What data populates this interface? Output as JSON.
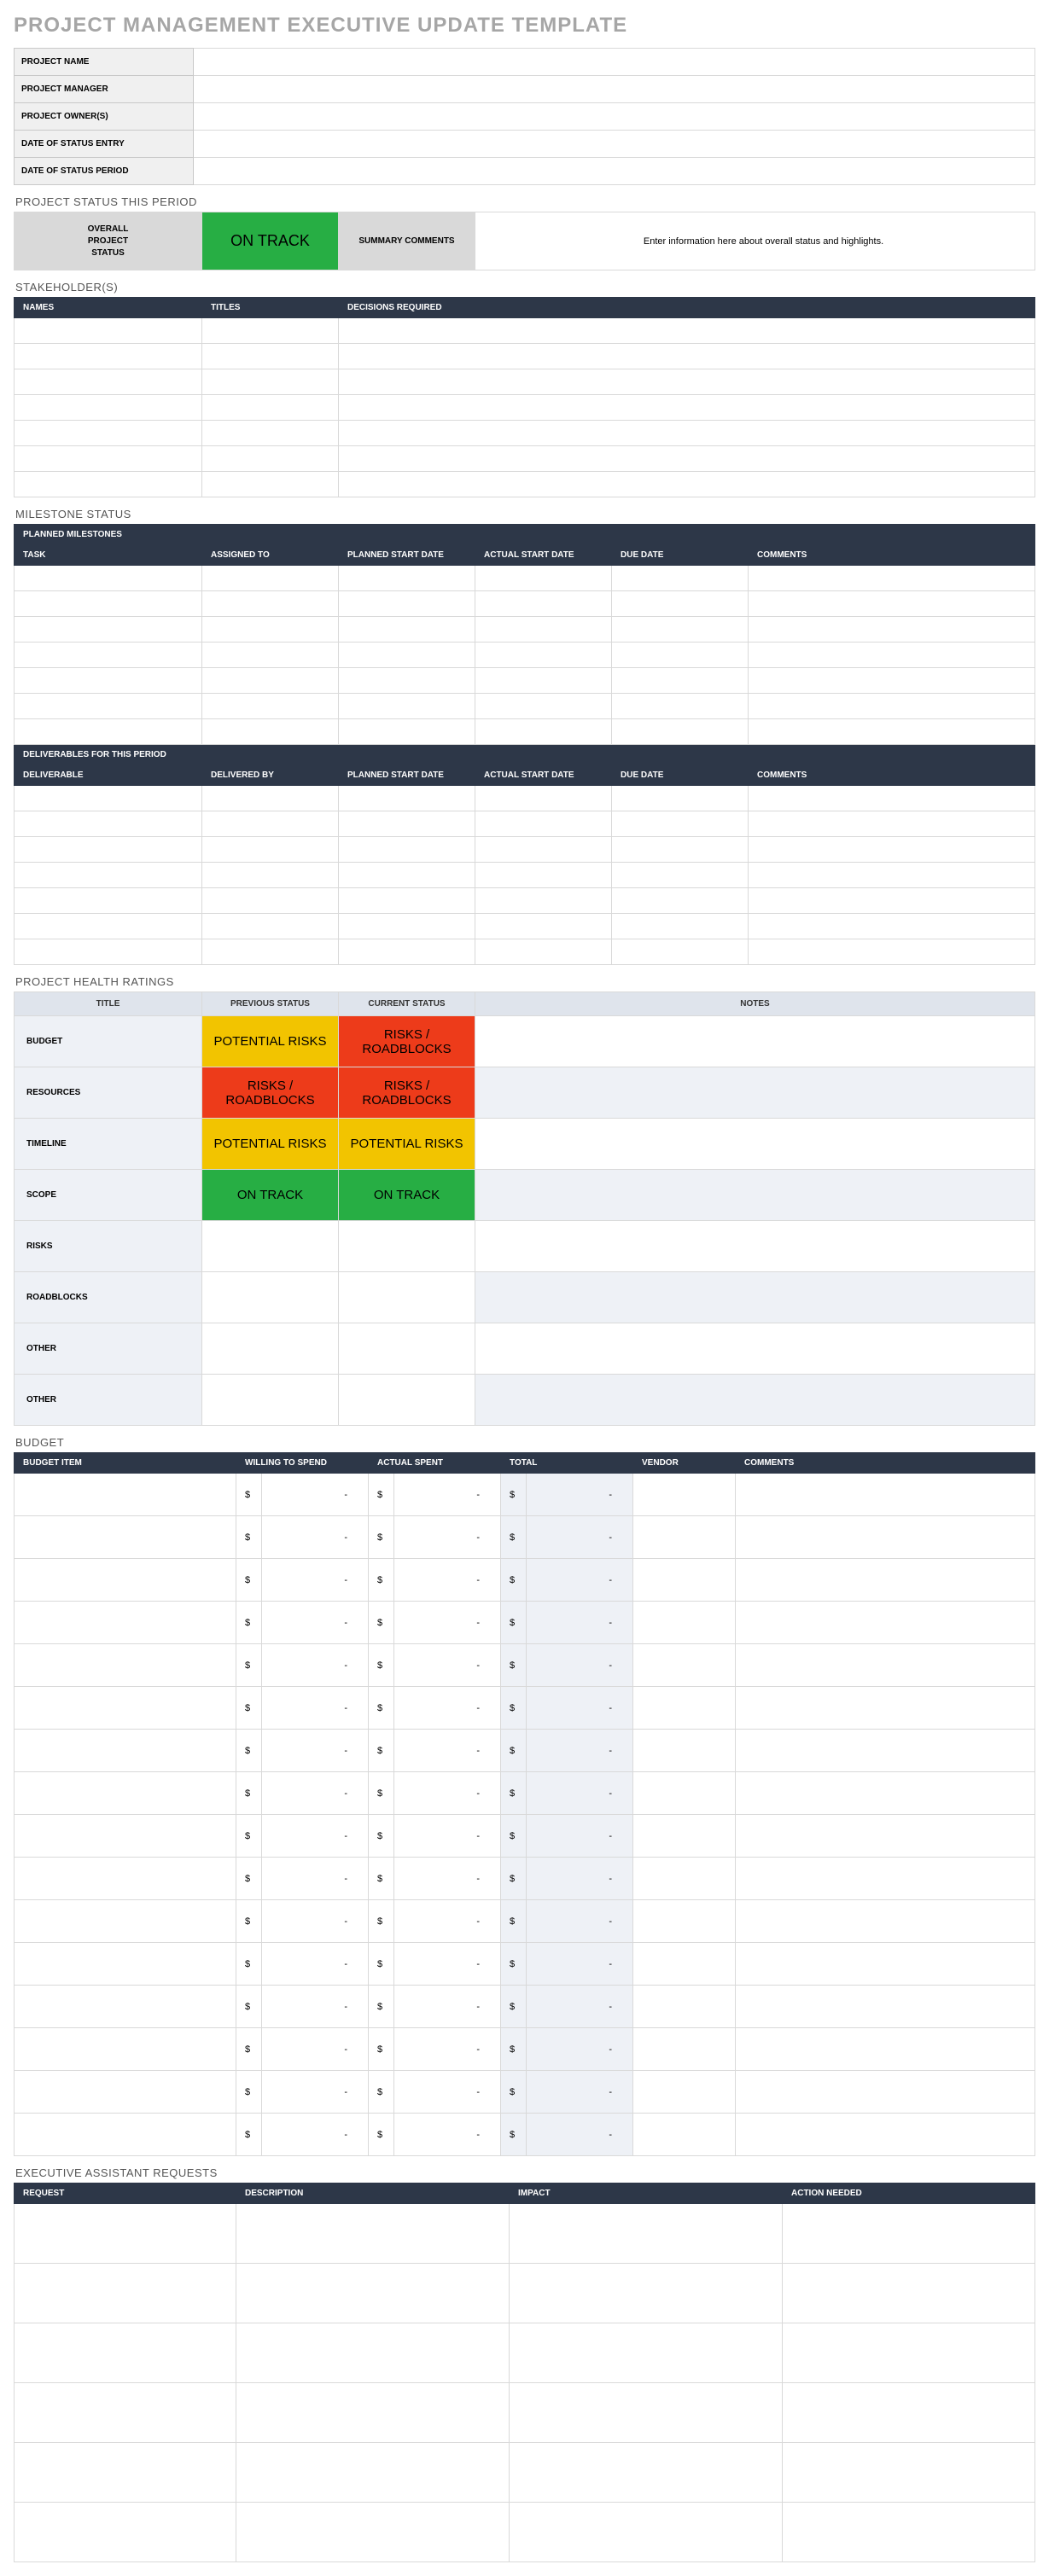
{
  "page_title": "PROJECT MANAGEMENT EXECUTIVE UPDATE TEMPLATE",
  "info_labels": [
    "PROJECT NAME",
    "PROJECT MANAGER",
    "PROJECT OWNER(S)",
    "DATE OF STATUS ENTRY",
    "DATE OF STATUS PERIOD"
  ],
  "status_section_label": "PROJECT STATUS THIS PERIOD",
  "status": {
    "overall_label": "OVERALL\nPROJECT\nSTATUS",
    "overall_value": "ON TRACK",
    "overall_class": "green",
    "summary_label": "SUMMARY COMMENTS",
    "summary_value": "Enter information here about overall status and highlights."
  },
  "stakeholders": {
    "section_label": "STAKEHOLDER(S)",
    "columns": [
      "NAMES",
      "TITLES",
      "DECISIONS REQUIRED"
    ],
    "row_count": 7
  },
  "milestone": {
    "section_label": "MILESTONE STATUS",
    "band1": "PLANNED MILESTONES",
    "columns1": [
      "TASK",
      "ASSIGNED TO",
      "PLANNED START DATE",
      "ACTUAL START DATE",
      "DUE DATE",
      "COMMENTS"
    ],
    "rows1": 7,
    "band2": "DELIVERABLES FOR THIS PERIOD",
    "columns2": [
      "DELIVERABLE",
      "DELIVERED BY",
      "PLANNED START DATE",
      "ACTUAL START DATE",
      "DUE DATE",
      "COMMENTS"
    ],
    "rows2": 7
  },
  "health": {
    "section_label": "PROJECT HEALTH RATINGS",
    "columns": [
      "TITLE",
      "PREVIOUS STATUS",
      "CURRENT STATUS",
      "NOTES"
    ],
    "rows": [
      {
        "label": "BUDGET",
        "prev": "POTENTIAL RISKS",
        "prev_class": "yellow",
        "cur": "RISKS / ROADBLOCKS",
        "cur_class": "red"
      },
      {
        "label": "RESOURCES",
        "prev": "RISKS / ROADBLOCKS",
        "prev_class": "red",
        "cur": "RISKS / ROADBLOCKS",
        "cur_class": "red"
      },
      {
        "label": "TIMELINE",
        "prev": "POTENTIAL RISKS",
        "prev_class": "yellow",
        "cur": "POTENTIAL RISKS",
        "cur_class": "yellow"
      },
      {
        "label": "SCOPE",
        "prev": "ON TRACK",
        "prev_class": "green",
        "cur": "ON TRACK",
        "cur_class": "green"
      },
      {
        "label": "RISKS",
        "prev": "",
        "prev_class": "",
        "cur": "",
        "cur_class": ""
      },
      {
        "label": "ROADBLOCKS",
        "prev": "",
        "prev_class": "",
        "cur": "",
        "cur_class": ""
      },
      {
        "label": "OTHER",
        "prev": "",
        "prev_class": "",
        "cur": "",
        "cur_class": ""
      },
      {
        "label": "OTHER",
        "prev": "",
        "prev_class": "",
        "cur": "",
        "cur_class": ""
      }
    ]
  },
  "budget": {
    "section_label": "BUDGET",
    "columns": [
      "BUDGET ITEM",
      "WILLING TO SPEND",
      "ACTUAL SPENT",
      "TOTAL",
      "VENDOR",
      "COMMENTS"
    ],
    "currency": "$",
    "dash": "-",
    "row_count": 16
  },
  "exec": {
    "section_label": "EXECUTIVE ASSISTANT REQUESTS",
    "columns": [
      "REQUEST",
      "DESCRIPTION",
      "IMPACT",
      "ACTION NEEDED"
    ],
    "row_count": 6
  },
  "colors": {
    "header_dark": "#2d3748",
    "header_light": "#dfe4ec",
    "green": "#27ae44",
    "yellow": "#f2c400",
    "red": "#ed3b1a",
    "grey_bg": "#f0f0f0",
    "border": "#d9d9d9",
    "title_grey": "#a6a6a6"
  }
}
